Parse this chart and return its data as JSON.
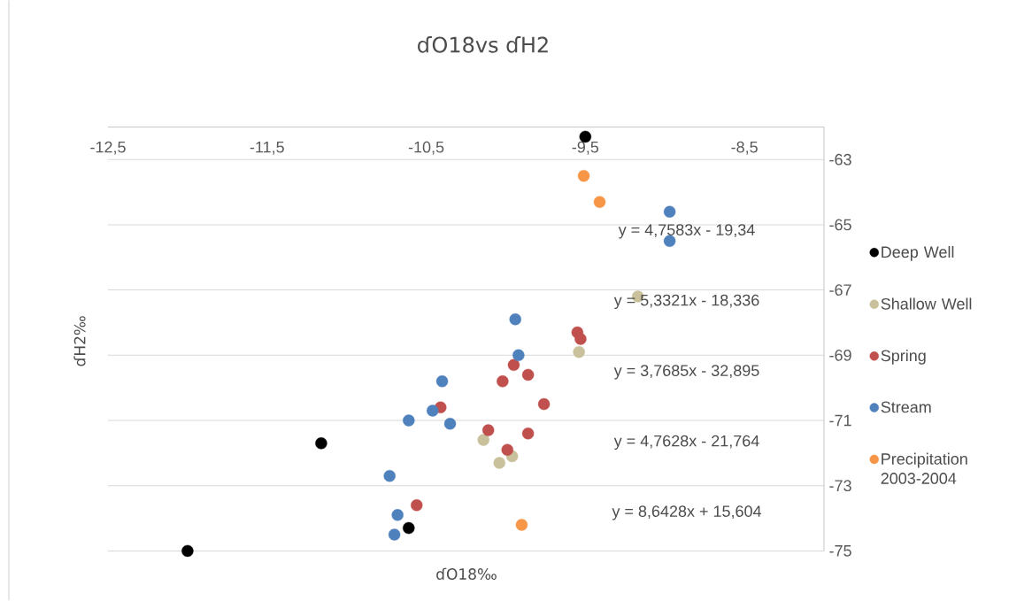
{
  "chart_data": {
    "type": "scatter",
    "title": "ɗO18vs ɗH2",
    "xlabel": "ɗO18‰",
    "ylabel": "ɗH2‰",
    "xlim": [
      -12.5,
      -8
    ],
    "ylim": [
      -75,
      -62
    ],
    "xticks": [
      {
        "value": -12.5,
        "label": "-12,5"
      },
      {
        "value": -11.5,
        "label": "-11,5"
      },
      {
        "value": -10.5,
        "label": "-10,5"
      },
      {
        "value": -9.5,
        "label": "-9,5"
      },
      {
        "value": -8.5,
        "label": "-8,5"
      }
    ],
    "yticks": [
      -75,
      -73,
      -71,
      -69,
      -67,
      -65,
      -63
    ],
    "grid": "y",
    "legend": "right",
    "marker": "circle",
    "series": [
      {
        "name": "Deep Well",
        "color": "#000000",
        "x": [
          -12.0,
          -11.16,
          -10.61,
          -9.5
        ],
        "values": [
          -75.0,
          -71.7,
          -74.3,
          -62.3
        ]
      },
      {
        "name": "Shallow Well",
        "color": "#c9c19b",
        "x": [
          -9.17,
          -9.54,
          -10.14,
          -10.04,
          -9.96
        ],
        "values": [
          -67.2,
          -68.9,
          -71.6,
          -72.3,
          -72.1
        ]
      },
      {
        "name": "Spring",
        "color": "#c0504d",
        "x": [
          -10.41,
          -10.56,
          -9.55,
          -9.53,
          -9.95,
          -10.02,
          -9.86,
          -9.76,
          -10.11,
          -9.86,
          -9.99
        ],
        "values": [
          -70.6,
          -73.6,
          -68.3,
          -68.5,
          -69.3,
          -69.8,
          -69.6,
          -70.5,
          -71.3,
          -71.4,
          -71.9
        ]
      },
      {
        "name": "Stream",
        "color": "#4f81bd",
        "x": [
          -8.97,
          -8.97,
          -9.94,
          -9.92,
          -10.4,
          -10.46,
          -10.61,
          -10.35,
          -10.73,
          -10.68,
          -10.7
        ],
        "values": [
          -64.6,
          -65.5,
          -67.9,
          -69.0,
          -69.8,
          -70.7,
          -71.0,
          -71.1,
          -72.7,
          -73.9,
          -74.5
        ]
      },
      {
        "name": "Precipitation 2003-2004",
        "color": "#f79646",
        "x": [
          -9.51,
          -9.41,
          -9.9
        ],
        "values": [
          -63.5,
          -64.3,
          -74.2
        ]
      }
    ],
    "annotations": [
      "y = 4,7583x - 19,34",
      "y = 5,3321x - 18,336",
      "y = 3,7685x - 32,895",
      "y = 4,7628x - 21,764",
      "y = 8,6428x + 15,604"
    ]
  }
}
